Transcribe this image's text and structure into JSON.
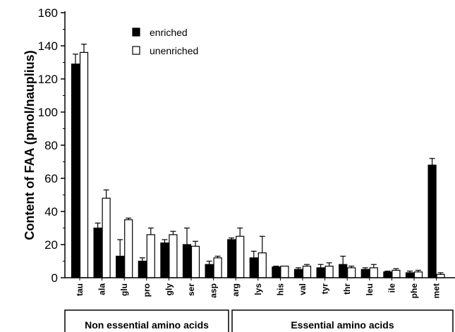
{
  "chart_data": {
    "type": "bar",
    "title": "",
    "xlabel": "",
    "ylabel": "Content of FAA (pmol/nauplius)",
    "ylim": [
      0,
      160
    ],
    "yticks": [
      0,
      20,
      40,
      60,
      80,
      100,
      120,
      140,
      160
    ],
    "grid": false,
    "legend_position": "top-center",
    "categories": [
      "tau",
      "ala",
      "glu",
      "pro",
      "gly",
      "ser",
      "asp",
      "arg",
      "lys",
      "his",
      "val",
      "tyr",
      "thr",
      "leu",
      "ile",
      "phe",
      "met"
    ],
    "series": [
      {
        "name": "enriched",
        "color": "#000000",
        "values": [
          129,
          30,
          13,
          10,
          21,
          20,
          8,
          23,
          12,
          6.5,
          5,
          6,
          8,
          5,
          3.5,
          3,
          68
        ],
        "errors": [
          6,
          3,
          10,
          2,
          2,
          10,
          2,
          1,
          4,
          0.5,
          1,
          2,
          5,
          1,
          0.5,
          1,
          4
        ]
      },
      {
        "name": "unenriched",
        "color": "#ffffff",
        "values": [
          136,
          48,
          35,
          26,
          26,
          19,
          12,
          25,
          15,
          7,
          7,
          7,
          6,
          6,
          4.5,
          3.5,
          2
        ],
        "errors": [
          5,
          5,
          1,
          4,
          2,
          3,
          1,
          5,
          10,
          0,
          1,
          2,
          1,
          2,
          1,
          1,
          1
        ]
      }
    ],
    "groups": [
      {
        "label": "Non essential amino acids",
        "categories": [
          "tau",
          "ala",
          "glu",
          "pro",
          "gly",
          "ser",
          "asp"
        ]
      },
      {
        "label": "Essential amino acids",
        "categories": [
          "arg",
          "lys",
          "his",
          "val",
          "tyr",
          "thr",
          "leu",
          "ile",
          "phe",
          "met"
        ]
      }
    ]
  }
}
